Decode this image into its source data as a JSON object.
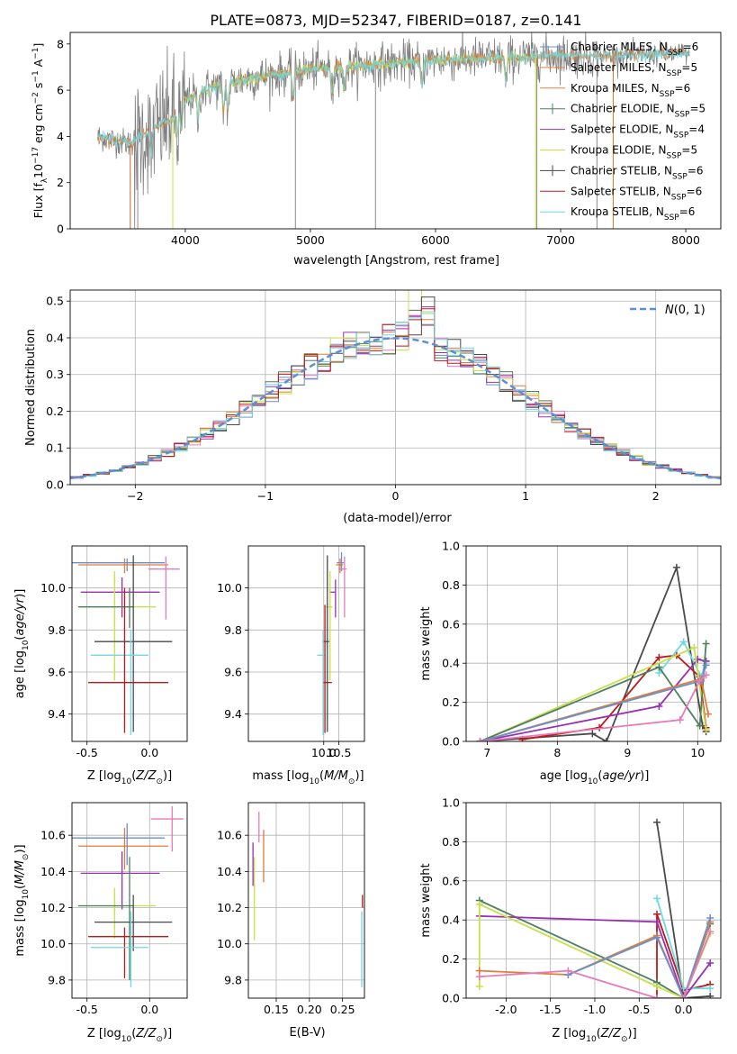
{
  "figure": {
    "title": "PLATE=0873, MJD=52347, FIBERID=0187, z=0.141"
  },
  "colors": {
    "Chabrier MILES": "#6a8fcf",
    "Salpeter MILES": "#e07d38",
    "Kroupa MILES": "#e8823a",
    "Chabrier ELODIE": "#4e8060",
    "Salpeter ELODIE": "#9a30b0",
    "Kroupa ELODIE": "#c8e04a",
    "Chabrier STELIB": "#4a4a4a",
    "Salpeter STELIB": "#c01818",
    "Kroupa STELIB": "#70d8e0",
    "extra pink": "#e87ab8",
    "data": "#808080",
    "gaussian": "#5b8fd6",
    "grid": "#b0b0b0"
  },
  "chart_data": [
    {
      "id": "spectrum",
      "type": "line",
      "xlabel": "wavelength [Angstrom, rest frame]",
      "ylabel": "Flux [f_λ 10^-17 erg cm^-2 s^-1 A^-1]",
      "xlim": [
        3080,
        8280
      ],
      "ylim": [
        0,
        8.5
      ],
      "xticks": [
        4000,
        5000,
        6000,
        7000,
        8000
      ],
      "yticks": [
        0,
        2,
        4,
        6,
        8
      ],
      "legend": "top-right",
      "legend_entries": [
        {
          "model": "Chabrier MILES",
          "nssp": "=6"
        },
        {
          "model": "Salpeter MILES",
          "nssp": "=5"
        },
        {
          "model": "Kroupa MILES",
          "nssp": "=6"
        },
        {
          "model": "Chabrier ELODIE",
          "nssp": "=5"
        },
        {
          "model": "Salpeter ELODIE",
          "nssp": "=4"
        },
        {
          "model": "Kroupa ELODIE",
          "nssp": "=5"
        },
        {
          "model": "Chabrier STELIB",
          "nssp": "=6"
        },
        {
          "model": "Salpeter STELIB",
          "nssp": "=6"
        },
        {
          "model": "Kroupa STELIB",
          "nssp": "=6"
        }
      ],
      "continuum": {
        "x": [
          3300,
          3550,
          3700,
          3900,
          4000,
          4200,
          4500,
          5000,
          5500,
          6000,
          6500,
          7000,
          7500,
          8000
        ],
        "y": [
          4.0,
          3.7,
          4.2,
          4.8,
          5.6,
          6.1,
          6.5,
          6.9,
          7.1,
          7.3,
          7.4,
          7.5,
          7.5,
          7.6
        ]
      }
    },
    {
      "id": "residuals",
      "type": "bar",
      "xlabel": "(data-model)/error",
      "ylabel": "Normed distribution",
      "xlim": [
        -2.5,
        2.5
      ],
      "ylim": [
        0,
        0.53
      ],
      "xticks": [
        -2,
        -1,
        0,
        1,
        2
      ],
      "yticks": [
        0.0,
        0.1,
        0.2,
        0.3,
        0.4,
        0.5
      ],
      "legend_label": "N(0,1)",
      "grid": true
    },
    {
      "id": "age-vs-Z",
      "type": "scatter",
      "xlabel": "Z [log10(Z/Z⊙)]",
      "ylabel": "age  [log10(age/yr)]",
      "xlim": [
        -0.62,
        0.3
      ],
      "ylim": [
        9.27,
        10.2
      ],
      "xticks": [
        -0.5,
        0.0
      ],
      "yticks": [
        9.4,
        9.6,
        9.8,
        10.0
      ],
      "points": [
        {
          "model": "Chabrier MILES",
          "x": -0.18,
          "y": 10.12,
          "xerr": [
            0.44,
            0.3
          ],
          "yerr": [
            0.04,
            0.02
          ]
        },
        {
          "model": "Salpeter MILES",
          "x": -0.2,
          "y": 10.11,
          "xerr": [
            0.37,
            0.35
          ],
          "yerr": [
            0.04,
            0.03
          ]
        },
        {
          "model": "extra pink",
          "x": 0.13,
          "y": 10.09,
          "xerr": [
            0.14,
            0.11
          ],
          "yerr": [
            0.24,
            0.06
          ]
        },
        {
          "model": "Salpeter ELODIE",
          "x": -0.22,
          "y": 9.98,
          "xerr": [
            0.33,
            0.3
          ],
          "yerr": [
            0.12,
            0.07
          ]
        },
        {
          "model": "Kroupa ELODIE",
          "x": -0.28,
          "y": 9.91,
          "xerr": [
            0.28,
            0.33
          ],
          "yerr": [
            0.35,
            0.17
          ]
        },
        {
          "model": "Chabrier ELODIE",
          "x": -0.16,
          "y": 9.91,
          "xerr": [
            0.41,
            0.03
          ],
          "yerr": [
            0.1,
            0.09
          ]
        },
        {
          "model": "Chabrier STELIB",
          "x": -0.13,
          "y": 9.745,
          "xerr": [
            0.31,
            0.31
          ],
          "yerr": [
            0.43,
            0.41
          ]
        },
        {
          "model": "Kroupa STELIB",
          "x": -0.15,
          "y": 9.68,
          "xerr": [
            0.32,
            0.14
          ],
          "yerr": [
            0.38,
            0.12
          ]
        },
        {
          "model": "Salpeter STELIB",
          "x": -0.2,
          "y": 9.55,
          "xerr": [
            0.29,
            0.35
          ],
          "yerr": [
            0.24,
            0.45
          ]
        }
      ]
    },
    {
      "id": "age-vs-mass",
      "type": "scatter",
      "xlabel": "mass [log10(M/M⊙)]",
      "ylabel": "",
      "xlim": [
        7.5,
        11.35
      ],
      "ylim": [
        9.27,
        10.2
      ],
      "xticks": [
        10.0,
        10.5
      ],
      "yticks": [
        9.4,
        9.6,
        9.8,
        10.0
      ],
      "points": [
        {
          "model": "Chabrier MILES",
          "x": 10.59,
          "y": 10.12,
          "xerr": [
            0.16,
            0.08
          ],
          "yerr": [
            0.04,
            0.05
          ]
        },
        {
          "model": "Salpeter MILES",
          "x": 10.54,
          "y": 10.11,
          "xerr": [
            0.13,
            0.1
          ],
          "yerr": [
            0.04,
            0.03
          ]
        },
        {
          "model": "extra pink",
          "x": 10.69,
          "y": 10.09,
          "xerr": [
            0.19,
            0.07
          ],
          "yerr": [
            0.23,
            0.06
          ]
        },
        {
          "model": "Salpeter ELODIE",
          "x": 10.39,
          "y": 9.98,
          "xerr": [
            0.2,
            0.02
          ],
          "yerr": [
            0.12,
            0.06
          ]
        },
        {
          "model": "Kroupa ELODIE",
          "x": 10.21,
          "y": 9.91,
          "xerr": [
            0.18,
            0.07
          ],
          "yerr": [
            0.35,
            0.17
          ]
        },
        {
          "model": "Chabrier STELIB",
          "x": 10.12,
          "y": 9.745,
          "xerr": [
            0.16,
            0.06
          ],
          "yerr": [
            0.43,
            0.41
          ]
        },
        {
          "model": "Kroupa STELIB",
          "x": 9.98,
          "y": 9.68,
          "xerr": [
            0.2,
            0.08
          ],
          "yerr": [
            0.38,
            0.12
          ]
        },
        {
          "model": "Salpeter STELIB",
          "x": 10.04,
          "y": 9.55,
          "xerr": [
            0.05,
            0.23
          ],
          "yerr": [
            0.24,
            0.37
          ]
        }
      ]
    },
    {
      "id": "weights-vs-age",
      "type": "line",
      "xlabel": "age  [log10(age/yr)]",
      "ylabel": "mass weight",
      "xlim": [
        6.7,
        10.33
      ],
      "ylim": [
        0,
        1.0
      ],
      "xticks": [
        7,
        8,
        9,
        10
      ],
      "yticks": [
        0.0,
        0.2,
        0.4,
        0.6,
        0.8,
        1.0
      ],
      "series": [
        {
          "model": "Chabrier STELIB",
          "x": [
            6.9,
            8.5,
            8.7,
            9.7,
            10.07,
            10.12
          ],
          "y": [
            0.0,
            0.04,
            0.0,
            0.89,
            0.08,
            0.05
          ]
        },
        {
          "model": "Salpeter STELIB",
          "x": [
            7.5,
            8.6,
            9.45,
            9.7,
            10.03,
            10.12
          ],
          "y": [
            0.01,
            0.07,
            0.43,
            0.44,
            0.33,
            0.07
          ]
        },
        {
          "model": "Kroupa STELIB",
          "x": [
            9.45,
            9.8,
            10.05,
            10.12
          ],
          "y": [
            0.35,
            0.51,
            0.33,
            0.41
          ]
        },
        {
          "model": "Salpeter ELODIE",
          "x": [
            6.9,
            9.45,
            10.0,
            10.12
          ],
          "y": [
            0.0,
            0.18,
            0.42,
            0.41
          ]
        },
        {
          "model": "Kroupa ELODIE",
          "x": [
            6.9,
            9.95,
            10.12
          ],
          "y": [
            0.0,
            0.48,
            0.06
          ]
        },
        {
          "model": "Chabrier ELODIE",
          "x": [
            6.9,
            9.45,
            10.03,
            10.12
          ],
          "y": [
            0.0,
            0.38,
            0.08,
            0.5
          ]
        },
        {
          "model": "Salpeter MILES",
          "x": [
            6.9,
            10.05,
            10.15
          ],
          "y": [
            0.0,
            0.32,
            0.14
          ]
        },
        {
          "model": "Chabrier MILES",
          "x": [
            6.9,
            10.05,
            10.12
          ],
          "y": [
            0.0,
            0.31,
            0.39
          ]
        },
        {
          "model": "extra pink",
          "x": [
            6.9,
            9.75,
            10.03,
            10.12
          ],
          "y": [
            0.0,
            0.11,
            0.31,
            0.34
          ]
        }
      ]
    },
    {
      "id": "mass-vs-Z",
      "type": "scatter",
      "xlabel": "Z [log10(Z/Z⊙)]",
      "ylabel": "mass [log10(M/M⊙)]",
      "xlim": [
        -0.62,
        0.3
      ],
      "ylim": [
        9.7,
        10.78
      ],
      "xticks": [
        -0.5,
        0.0
      ],
      "yticks": [
        9.8,
        10.0,
        10.2,
        10.4,
        10.6
      ],
      "points": [
        {
          "model": "extra pink",
          "x": 0.18,
          "y": 10.69,
          "xerr": [
            0.17,
            0.09
          ],
          "yerr": [
            0.18,
            0.07
          ]
        },
        {
          "model": "Chabrier MILES",
          "x": -0.18,
          "y": 10.585,
          "xerr": [
            0.44,
            0.3
          ],
          "yerr": [
            0.15,
            0.08
          ]
        },
        {
          "model": "Salpeter MILES",
          "x": -0.2,
          "y": 10.54,
          "xerr": [
            0.37,
            0.35
          ],
          "yerr": [
            0.13,
            0.1
          ]
        },
        {
          "model": "Salpeter ELODIE",
          "x": -0.22,
          "y": 10.39,
          "xerr": [
            0.33,
            0.3
          ],
          "yerr": [
            0.2,
            0.12
          ]
        },
        {
          "model": "Kroupa ELODIE",
          "x": -0.28,
          "y": 10.21,
          "xerr": [
            0.28,
            0.33
          ],
          "yerr": [
            0.18,
            0.1
          ]
        },
        {
          "model": "Chabrier ELODIE",
          "x": -0.16,
          "y": 10.21,
          "xerr": [
            0.41,
            0.03
          ],
          "yerr": [
            0.41,
            0.27
          ]
        },
        {
          "model": "Chabrier STELIB",
          "x": -0.13,
          "y": 10.12,
          "xerr": [
            0.31,
            0.31
          ],
          "yerr": [
            0.16,
            0.15
          ]
        },
        {
          "model": "Salpeter STELIB",
          "x": -0.2,
          "y": 10.04,
          "xerr": [
            0.29,
            0.35
          ],
          "yerr": [
            0.23,
            0.05
          ]
        },
        {
          "model": "Kroupa STELIB",
          "x": -0.15,
          "y": 9.98,
          "xerr": [
            0.32,
            0.14
          ],
          "yerr": [
            0.22,
            0.2
          ]
        }
      ]
    },
    {
      "id": "mass-vs-EBV",
      "type": "scatter",
      "xlabel": "E(B-V)",
      "ylabel": "",
      "xlim": [
        0.108,
        0.283
      ],
      "ylim": [
        9.7,
        10.78
      ],
      "xticks": [
        0.15,
        0.2,
        0.25
      ],
      "yticks": [
        9.8,
        10.0,
        10.2,
        10.4,
        10.6
      ],
      "points": [
        {
          "model": "extra pink",
          "x": 0.124,
          "y": 10.63,
          "yerr": [
            0.07,
            0.1
          ]
        },
        {
          "model": "Salpeter MILES",
          "x": 0.131,
          "y": 10.5,
          "yerr": [
            0.16,
            0.13
          ]
        },
        {
          "model": "Kroupa ELODIE",
          "x": 0.117,
          "y": 10.3,
          "yerr": [
            0.28,
            0.18
          ]
        },
        {
          "model": "Salpeter ELODIE",
          "x": 0.115,
          "y": 10.44,
          "yerr": [
            0.12,
            0.12
          ]
        },
        {
          "model": "Kroupa STELIB",
          "x": 0.279,
          "y": 9.98,
          "yerr": [
            0.22,
            0.2
          ]
        },
        {
          "model": "Salpeter STELIB",
          "x": 0.28,
          "y": 10.2,
          "yerr": [
            0.0,
            0.07
          ]
        }
      ]
    },
    {
      "id": "weights-vs-Z",
      "type": "line",
      "xlabel": "Z [log10(Z/Z⊙)]",
      "ylabel": "mass weight",
      "xlim": [
        -2.45,
        0.42
      ],
      "ylim": [
        0,
        1.0
      ],
      "xticks": [
        -2.0,
        -1.5,
        -1.0,
        -0.5,
        0.0
      ],
      "yticks": [
        0.0,
        0.2,
        0.4,
        0.6,
        0.8,
        1.0
      ],
      "series": [
        {
          "model": "Chabrier STELIB",
          "x": [
            -0.3,
            0.0,
            0.3
          ],
          "y": [
            0.9,
            0.0,
            0.01
          ]
        },
        {
          "model": "Salpeter STELIB",
          "x": [
            -0.3,
            -0.3,
            0.0,
            0.3
          ],
          "y": [
            0.0,
            0.43,
            0.04,
            0.07
          ]
        },
        {
          "model": "Kroupa STELIB",
          "x": [
            -0.3,
            0.0,
            0.3
          ],
          "y": [
            0.51,
            0.05,
            0.05
          ]
        },
        {
          "model": "Chabrier ELODIE",
          "x": [
            -2.3,
            -0.3,
            0.0,
            0.3
          ],
          "y": [
            0.5,
            0.08,
            0.0,
            0.38
          ]
        },
        {
          "model": "Salpeter ELODIE",
          "x": [
            -2.3,
            -0.3,
            0.0,
            0.3
          ],
          "y": [
            0.42,
            0.39,
            0.0,
            0.18
          ]
        },
        {
          "model": "Kroupa ELODIE",
          "x": [
            -2.3,
            -2.3,
            -0.3,
            0.0,
            0.3
          ],
          "y": [
            0.06,
            0.48,
            0.06,
            0.0,
            0.33
          ]
        },
        {
          "model": "Salpeter MILES",
          "x": [
            -2.3,
            -1.3,
            -0.3,
            0.0,
            0.3
          ],
          "y": [
            0.14,
            0.12,
            0.32,
            0.0,
            0.39
          ]
        },
        {
          "model": "Chabrier MILES",
          "x": [
            -1.3,
            -0.3,
            0.0,
            0.3
          ],
          "y": [
            0.12,
            0.31,
            0.0,
            0.41
          ]
        },
        {
          "model": "extra pink",
          "x": [
            -2.3,
            -1.3,
            -0.3,
            0.0,
            0.3
          ],
          "y": [
            0.11,
            0.14,
            0.0,
            0.0,
            0.34
          ]
        }
      ]
    }
  ]
}
